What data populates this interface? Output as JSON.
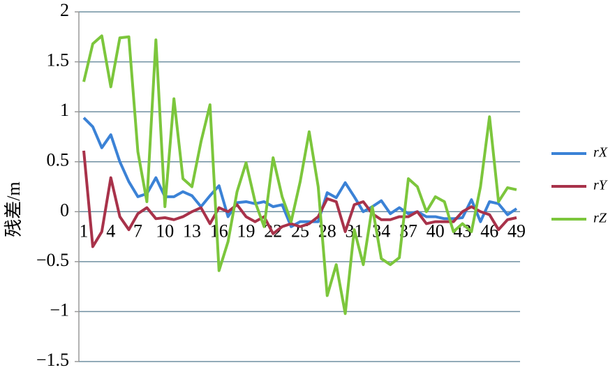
{
  "chart_data": {
    "type": "line",
    "y_label": "残差/m",
    "categories": [
      "1",
      null,
      null,
      "4",
      null,
      null,
      "7",
      null,
      null,
      "10",
      null,
      null,
      "13",
      null,
      null,
      "16",
      null,
      null,
      "19",
      null,
      null,
      "22",
      null,
      null,
      "25",
      null,
      null,
      "28",
      null,
      null,
      "31",
      null,
      null,
      "34",
      null,
      null,
      "37",
      null,
      null,
      "40",
      null,
      null,
      "43",
      null,
      null,
      "46",
      null,
      null,
      "49"
    ],
    "series": [
      {
        "name": "rX",
        "color": "#3b82d6",
        "values": [
          0.94,
          0.85,
          0.64,
          0.77,
          0.5,
          0.3,
          0.15,
          0.18,
          0.34,
          0.15,
          0.15,
          0.2,
          0.16,
          0.05,
          0.16,
          0.26,
          -0.05,
          0.09,
          0.1,
          0.08,
          0.1,
          0.05,
          0.07,
          -0.15,
          -0.1,
          -0.1,
          -0.1,
          0.19,
          0.14,
          0.29,
          0.15,
          0.0,
          0.05,
          0.11,
          -0.02,
          0.04,
          -0.02,
          0.0,
          -0.05,
          -0.05,
          -0.07,
          -0.07,
          -0.06,
          0.12,
          -0.1,
          0.1,
          0.08,
          -0.03,
          0.03
        ]
      },
      {
        "name": "rY",
        "color": "#a8324a",
        "values": [
          0.61,
          -0.35,
          -0.2,
          0.34,
          -0.05,
          -0.18,
          -0.02,
          0.04,
          -0.07,
          -0.06,
          -0.08,
          -0.05,
          0.0,
          0.04,
          -0.12,
          0.04,
          0.0,
          0.07,
          -0.05,
          -0.1,
          -0.05,
          -0.22,
          -0.15,
          -0.12,
          -0.15,
          -0.12,
          -0.05,
          0.13,
          0.1,
          -0.2,
          0.07,
          0.1,
          -0.02,
          -0.08,
          -0.08,
          -0.05,
          -0.05,
          0.0,
          -0.12,
          -0.1,
          -0.1,
          -0.1,
          0.0,
          0.05,
          0.0,
          -0.03,
          -0.18,
          -0.08,
          -0.06
        ]
      },
      {
        "name": "rZ",
        "color": "#7cc63c",
        "values": [
          1.3,
          1.68,
          1.76,
          1.25,
          1.74,
          1.75,
          0.6,
          0.1,
          1.72,
          0.05,
          1.13,
          0.33,
          0.25,
          0.7,
          1.07,
          -0.59,
          -0.3,
          0.2,
          0.49,
          0.1,
          -0.15,
          0.54,
          0.15,
          -0.1,
          0.3,
          0.8,
          0.25,
          -0.84,
          -0.53,
          -1.02,
          -0.18,
          -0.53,
          0.05,
          -0.47,
          -0.53,
          -0.46,
          0.33,
          0.25,
          0.0,
          0.15,
          0.1,
          -0.2,
          -0.12,
          -0.2,
          0.25,
          0.95,
          0.1,
          0.24,
          0.22
        ]
      }
    ],
    "ylim": [
      -1.5,
      2
    ],
    "yticks": [
      {
        "value": -1.5,
        "label": "−1.5"
      },
      {
        "value": -1,
        "label": "−1"
      },
      {
        "value": -0.5,
        "label": "−0.5"
      },
      0,
      0.5,
      1,
      1.5,
      2
    ],
    "grid": true,
    "legend": "right"
  }
}
